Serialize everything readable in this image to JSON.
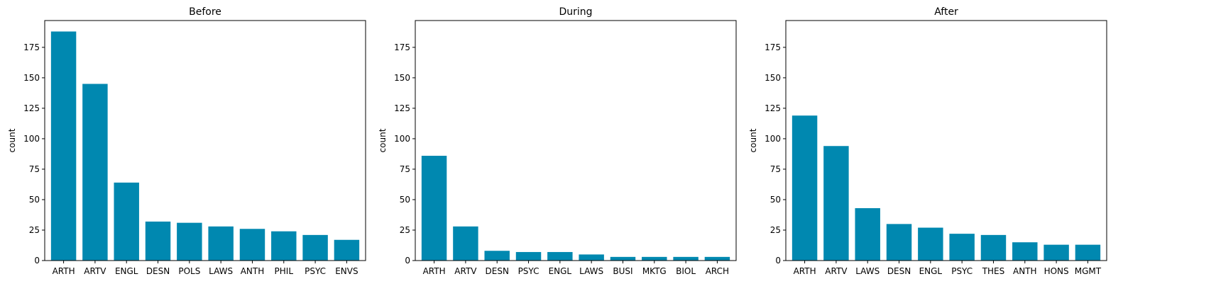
{
  "chart_data": [
    {
      "type": "bar",
      "title": "Before",
      "xlabel": "",
      "ylabel": "count",
      "ylim": [
        0,
        197
      ],
      "yticks": [
        0,
        25,
        50,
        75,
        100,
        125,
        150,
        175
      ],
      "categories": [
        "ARTH",
        "ARTV",
        "ENGL",
        "DESN",
        "POLS",
        "LAWS",
        "ANTH",
        "PHIL",
        "PSYC",
        "ENVS"
      ],
      "values": [
        188,
        145,
        64,
        32,
        31,
        28,
        26,
        24,
        21,
        17
      ],
      "color": "#0088b0",
      "grid": false
    },
    {
      "type": "bar",
      "title": "During",
      "xlabel": "",
      "ylabel": "count",
      "ylim": [
        0,
        197
      ],
      "yticks": [
        0,
        25,
        50,
        75,
        100,
        125,
        150,
        175
      ],
      "categories": [
        "ARTH",
        "ARTV",
        "DESN",
        "PSYC",
        "ENGL",
        "LAWS",
        "BUSI",
        "MKTG",
        "BIOL",
        "ARCH"
      ],
      "values": [
        86,
        28,
        8,
        7,
        7,
        5,
        3,
        3,
        3,
        3
      ],
      "color": "#0088b0",
      "grid": false
    },
    {
      "type": "bar",
      "title": "After",
      "xlabel": "",
      "ylabel": "count",
      "ylim": [
        0,
        197
      ],
      "yticks": [
        0,
        25,
        50,
        75,
        100,
        125,
        150,
        175
      ],
      "categories": [
        "ARTH",
        "ARTV",
        "LAWS",
        "DESN",
        "ENGL",
        "PSYC",
        "THES",
        "ANTH",
        "HONS",
        "MGMT"
      ],
      "values": [
        119,
        94,
        43,
        30,
        27,
        22,
        21,
        15,
        13,
        13
      ],
      "color": "#0088b0",
      "grid": false
    }
  ]
}
